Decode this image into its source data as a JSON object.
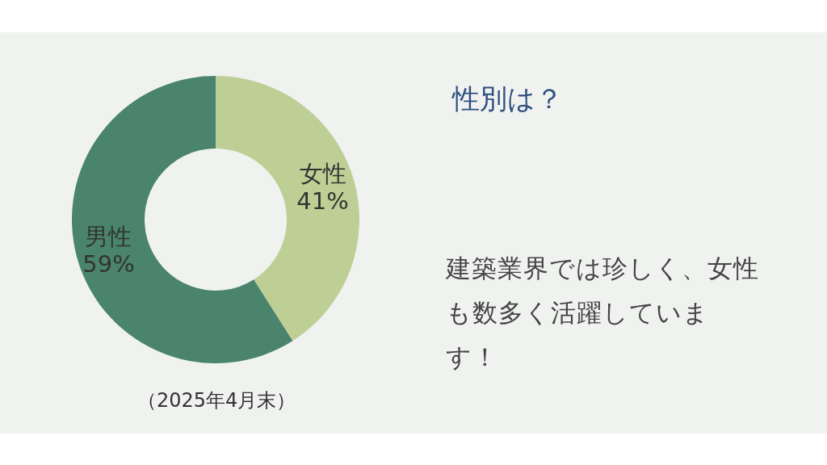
{
  "chart_data": {
    "type": "donut",
    "title": "性別は？",
    "categories": [
      "女性",
      "男性"
    ],
    "values": [
      41,
      59
    ],
    "colors": [
      "#bdcf95",
      "#4a846c"
    ],
    "value_labels": [
      "41%",
      "59%"
    ],
    "annotations": [
      "（2025年4月末）",
      "建築業界では珍しく、女性も数多く活躍しています！"
    ]
  }
}
